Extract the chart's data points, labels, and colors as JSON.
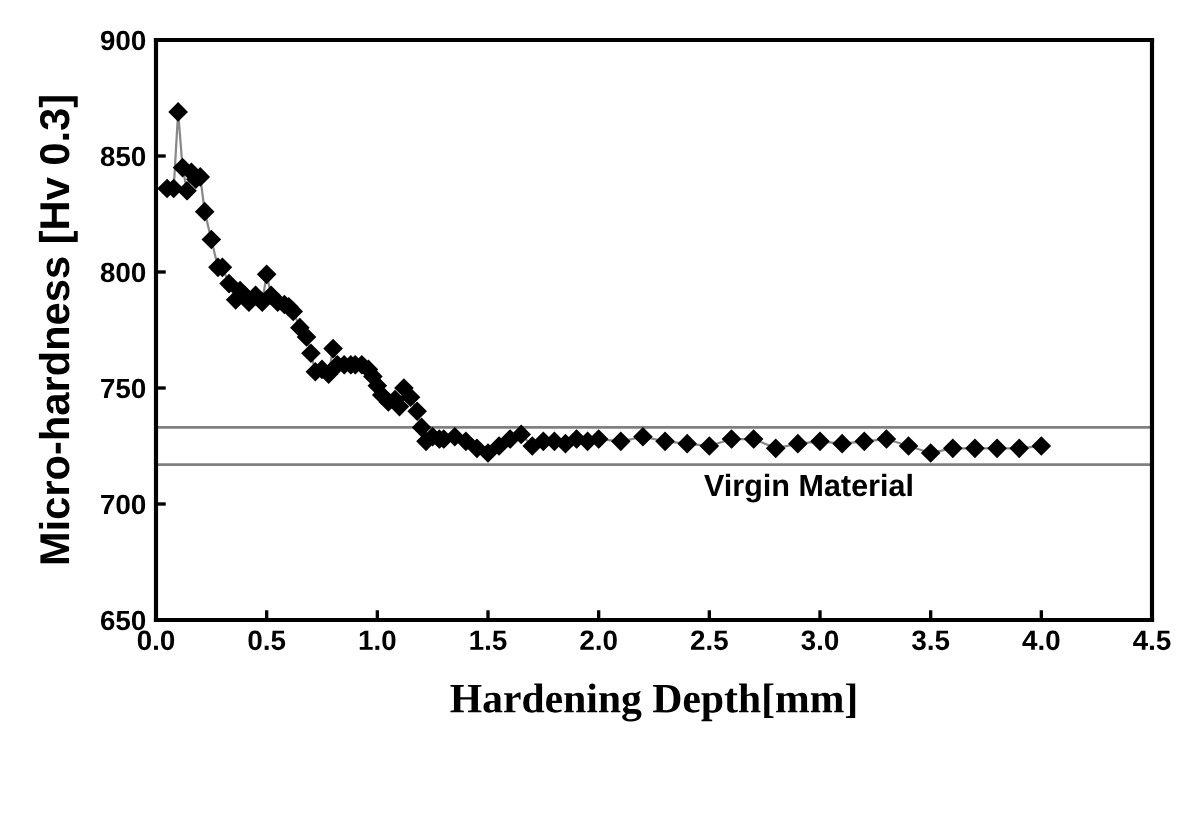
{
  "chart_data": {
    "type": "line",
    "xlabel": "Hardening Depth[mm]",
    "ylabel": "Micro-hardness [Hv 0.3]",
    "x": [
      0.05,
      0.08,
      0.1,
      0.12,
      0.14,
      0.16,
      0.18,
      0.2,
      0.22,
      0.25,
      0.28,
      0.3,
      0.33,
      0.36,
      0.38,
      0.4,
      0.42,
      0.45,
      0.48,
      0.5,
      0.52,
      0.55,
      0.58,
      0.6,
      0.62,
      0.65,
      0.68,
      0.7,
      0.72,
      0.75,
      0.78,
      0.8,
      0.82,
      0.85,
      0.88,
      0.9,
      0.93,
      0.96,
      0.98,
      1.0,
      1.02,
      1.05,
      1.08,
      1.1,
      1.12,
      1.15,
      1.18,
      1.2,
      1.22,
      1.25,
      1.28,
      1.3,
      1.35,
      1.4,
      1.45,
      1.5,
      1.55,
      1.6,
      1.65,
      1.7,
      1.75,
      1.8,
      1.85,
      1.9,
      1.95,
      2.0,
      2.1,
      2.2,
      2.3,
      2.4,
      2.5,
      2.6,
      2.7,
      2.8,
      2.9,
      3.0,
      3.1,
      3.2,
      3.3,
      3.4,
      3.5,
      3.6,
      3.7,
      3.8,
      3.9,
      4.0
    ],
    "series": [
      {
        "color": "#000000",
        "values": [
          836,
          836,
          869,
          845,
          835,
          843,
          840,
          841,
          826,
          814,
          802,
          802,
          795,
          788,
          792,
          790,
          787,
          790,
          787,
          799,
          790,
          787,
          786,
          785,
          783,
          776,
          772,
          765,
          757,
          758,
          756,
          767,
          760,
          760,
          760,
          760,
          760,
          758,
          755,
          751,
          747,
          744,
          745,
          742,
          750,
          746,
          740,
          733,
          727,
          729,
          728,
          728,
          729,
          727,
          724,
          722,
          725,
          728,
          730,
          725,
          727,
          727,
          726,
          728,
          727,
          728,
          727,
          729,
          727,
          726,
          725,
          728,
          728,
          724,
          726,
          727,
          726,
          727,
          728,
          725,
          722,
          724,
          724,
          724,
          724,
          725
        ]
      }
    ],
    "marker": "diamond",
    "line_style": "solid",
    "xlim": [
      0,
      4.5
    ],
    "xticks": [
      {
        "value": 0,
        "label": "0.0"
      },
      {
        "value": 0.5,
        "label": "0.5"
      },
      {
        "value": 1,
        "label": "1.0"
      },
      {
        "value": 1.5,
        "label": "1.5"
      },
      {
        "value": 2,
        "label": "2.0"
      },
      {
        "value": 2.5,
        "label": "2.5"
      },
      {
        "value": 3,
        "label": "3.0"
      },
      {
        "value": 3.5,
        "label": "3.5"
      },
      {
        "value": 4,
        "label": "4.0"
      },
      {
        "value": 4.5,
        "label": "4.5"
      }
    ],
    "ylim": [
      650,
      900
    ],
    "yticks": [
      650,
      700,
      750,
      800,
      850,
      900
    ],
    "ref_lines": [
      {
        "axis": "y",
        "value": 733,
        "color": "#808080"
      },
      {
        "axis": "y",
        "value": 717,
        "color": "#808080",
        "label": "Virgin Material"
      }
    ],
    "grid": false,
    "legend": false
  }
}
